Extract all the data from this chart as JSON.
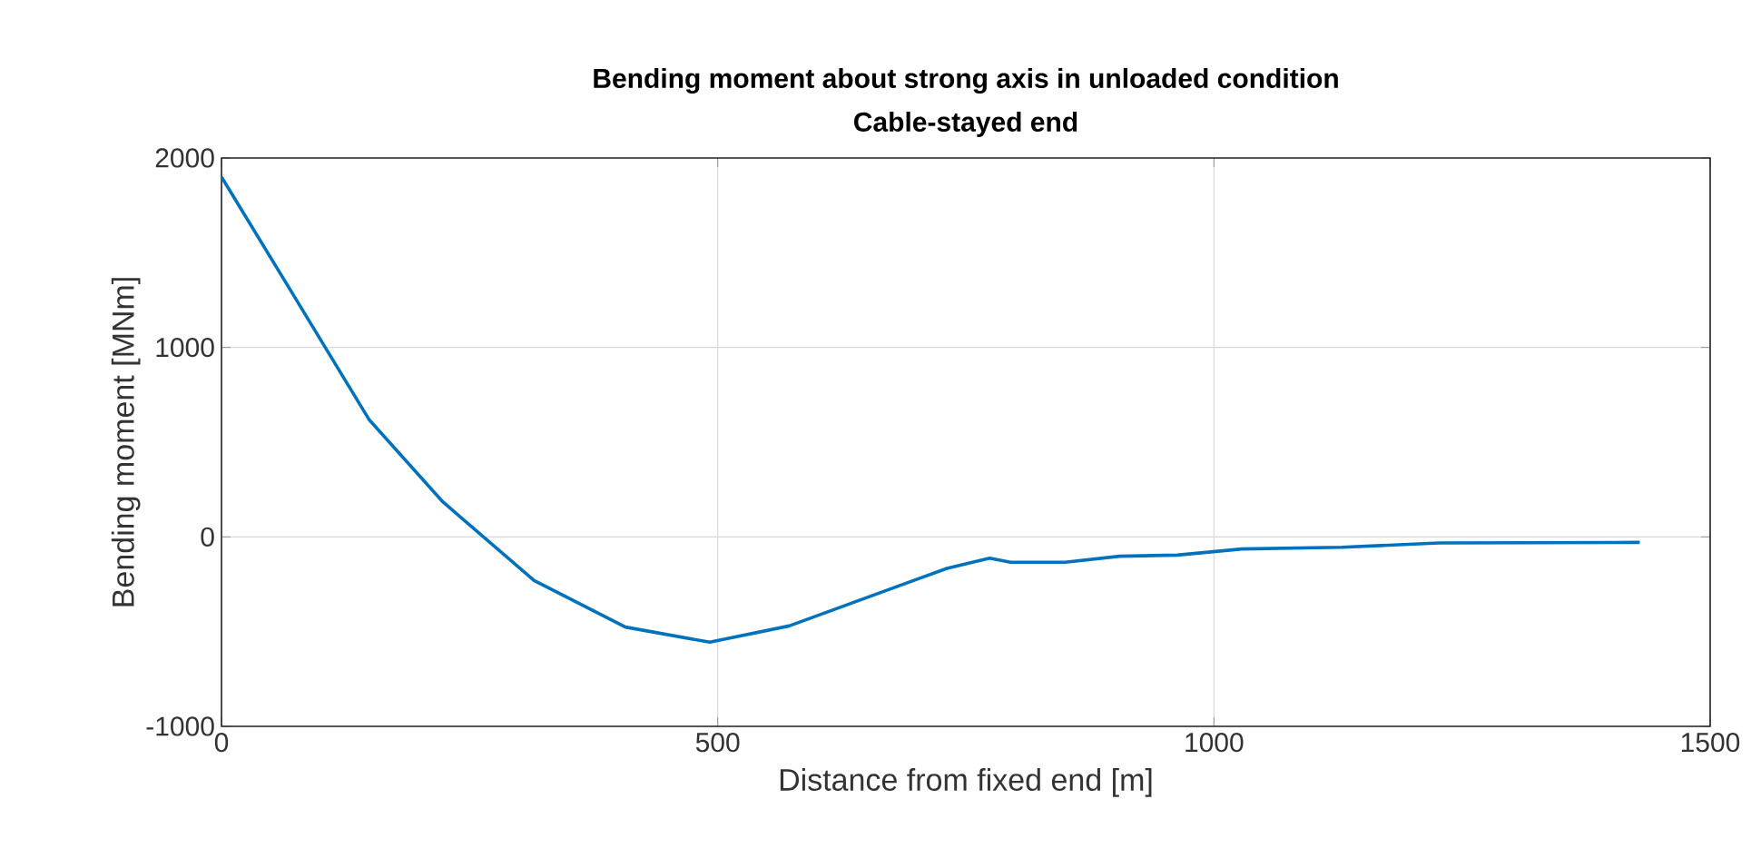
{
  "chart_data": {
    "type": "line",
    "title": "Bending moment about strong axis in unloaded condition",
    "subtitle": "Cable-stayed end",
    "xlabel": "Distance from fixed end [m]",
    "ylabel": "Bending moment [MNm]",
    "x": [
      0,
      73,
      149,
      223,
      315,
      407,
      492,
      572,
      731,
      774,
      795,
      850,
      905,
      963,
      1028,
      1129,
      1227,
      1429
    ],
    "series": [
      {
        "color": "#0072bd",
        "values": [
          1900,
          1272,
          617,
          185,
          -230,
          -476,
          -556,
          -470,
          -166,
          -112,
          -134,
          -134,
          -102,
          -96,
          -64,
          -55,
          -32,
          -29
        ]
      }
    ],
    "xlim": [
      0,
      1500
    ],
    "ylim": [
      -1000,
      2000
    ],
    "xticks": [
      0,
      500,
      1000,
      1500
    ],
    "yticks": [
      -1000,
      0,
      1000,
      2000
    ],
    "grid": true,
    "line_style": "solid",
    "marker": "none"
  }
}
